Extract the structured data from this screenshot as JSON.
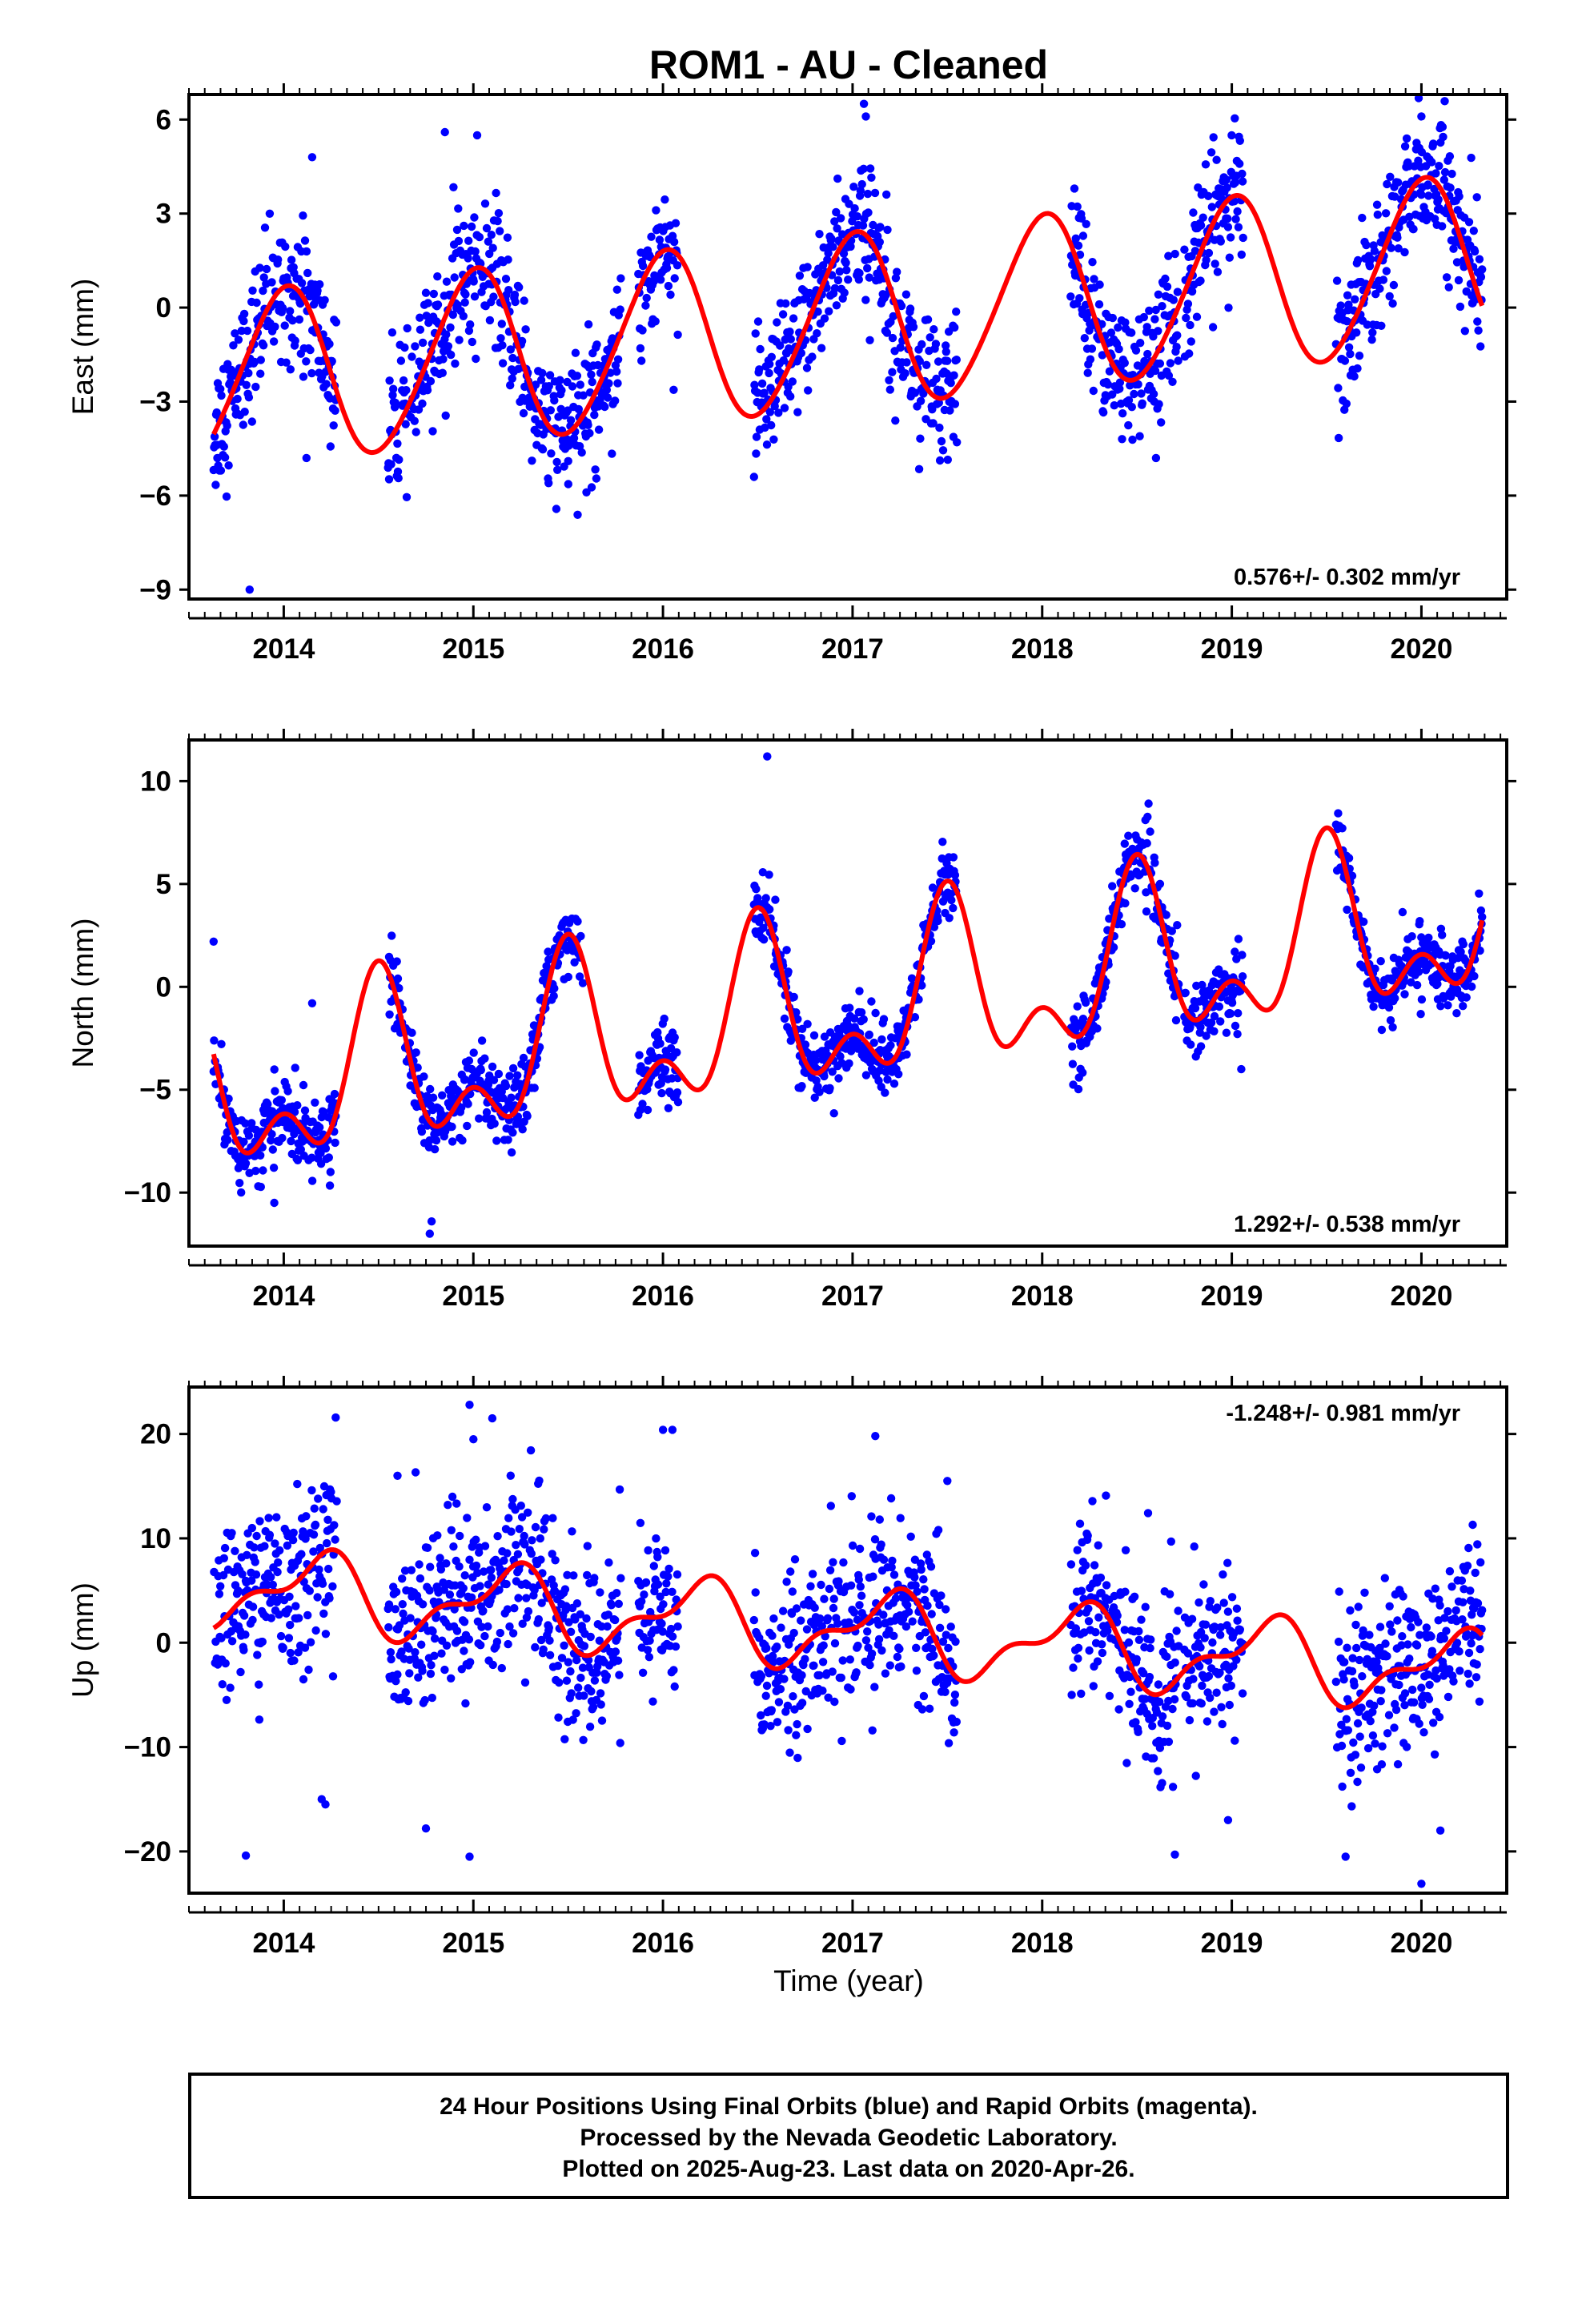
{
  "title": "ROM1  - AU - Cleaned",
  "xlabel": "Time (year)",
  "footer": {
    "line1": "24 Hour Positions Using Final Orbits (blue) and Rapid Orbits (magenta).",
    "line2": "Processed by the Nevada Geodetic Laboratory.",
    "line3": "Plotted on 2025-Aug-23. Last data on 2020-Apr-26."
  },
  "colors": {
    "points": "#0000ff",
    "model": "#ff0000",
    "axes": "#000000"
  },
  "chart_data": [
    {
      "type": "scatter",
      "component": "east",
      "ylabel": "East (mm)",
      "rate_label": "0.576+/- 0.302 mm/yr",
      "rate_position": "bottom-right",
      "xlim": [
        2013.5,
        2020.45
      ],
      "ylim": [
        -9.3,
        6.8
      ],
      "xticks": [
        2014,
        2015,
        2016,
        2017,
        2018,
        2019,
        2020
      ],
      "yticks": [
        -9,
        -6,
        -3,
        0,
        3,
        6
      ],
      "ytick_labels": [
        "−9",
        "−6",
        "−3",
        "0",
        "3",
        "6"
      ],
      "data_segments": [
        [
          2013.63,
          2014.28
        ],
        [
          2014.55,
          2015.78
        ],
        [
          2015.87,
          2016.08
        ],
        [
          2016.48,
          2017.55
        ],
        [
          2018.15,
          2018.72
        ],
        [
          2018.75,
          2019.06
        ],
        [
          2019.55,
          2020.32
        ]
      ],
      "scatter_sigma": 1.1,
      "model": {
        "offset": -0.45,
        "rate": 0.576,
        "ref_year": 2017.0,
        "annual_amp": 2.75,
        "annual_peak": 2017.0,
        "semi_amp": 0.25,
        "semi_peak": 2017.1
      },
      "outliers": [
        [
          2013.82,
          -9.0
        ],
        [
          2014.15,
          4.8
        ],
        [
          2017.06,
          6.5
        ],
        [
          2017.07,
          6.1
        ],
        [
          2014.85,
          5.6
        ],
        [
          2015.02,
          5.5
        ],
        [
          2020.0,
          6.1
        ],
        [
          2018.17,
          3.8
        ],
        [
          2018.6,
          -4.8
        ],
        [
          2015.5,
          -4.9
        ],
        [
          2013.65,
          -4.8
        ],
        [
          2014.12,
          -4.8
        ],
        [
          2017.55,
          -4.3
        ]
      ]
    },
    {
      "type": "scatter",
      "component": "north",
      "ylabel": "North (mm)",
      "rate_label": "1.292+/- 0.538 mm/yr",
      "rate_position": "bottom-right",
      "xlim": [
        2013.5,
        2020.45
      ],
      "ylim": [
        -12.6,
        12.0
      ],
      "xticks": [
        2014,
        2015,
        2016,
        2017,
        2018,
        2019,
        2020
      ],
      "yticks": [
        -10,
        -5,
        0,
        5,
        10
      ],
      "ytick_labels": [
        "−10",
        "−5",
        "0",
        "5",
        "10"
      ],
      "data_segments": [
        [
          2013.63,
          2014.28
        ],
        [
          2014.55,
          2015.58
        ],
        [
          2015.87,
          2016.08
        ],
        [
          2016.48,
          2017.55
        ],
        [
          2018.15,
          2018.72
        ],
        [
          2018.75,
          2019.06
        ],
        [
          2019.55,
          2020.32
        ]
      ],
      "scatter_sigma": 0.85,
      "model": {
        "offset": -1.1,
        "rate": 1.292,
        "ref_year": 2017.0,
        "annual_amp": 3.4,
        "annual_peak": 2017.5,
        "semi_amp": 2.2,
        "semi_peak": 2017.5
      },
      "outliers": [
        [
          2016.55,
          11.2
        ],
        [
          2014.77,
          -12.0
        ],
        [
          2014.78,
          -11.4
        ],
        [
          2013.95,
          -10.5
        ],
        [
          2016.08,
          -5.6
        ],
        [
          2019.05,
          -4.0
        ],
        [
          2013.63,
          2.2
        ],
        [
          2014.15,
          -0.8
        ]
      ]
    },
    {
      "type": "scatter",
      "component": "up",
      "ylabel": "Up (mm)",
      "rate_label": "-1.248+/- 0.981 mm/yr",
      "rate_position": "top-right",
      "xlim": [
        2013.5,
        2020.45
      ],
      "ylim": [
        -24.0,
        24.5
      ],
      "xticks": [
        2014,
        2015,
        2016,
        2017,
        2018,
        2019,
        2020
      ],
      "yticks": [
        -20,
        -10,
        0,
        10,
        20
      ],
      "ytick_labels": [
        "−20",
        "−10",
        "0",
        "10",
        "20"
      ],
      "data_segments": [
        [
          2013.63,
          2014.28
        ],
        [
          2014.55,
          2015.78
        ],
        [
          2015.87,
          2016.08
        ],
        [
          2016.48,
          2017.55
        ],
        [
          2018.15,
          2018.72
        ],
        [
          2018.75,
          2019.06
        ],
        [
          2019.55,
          2020.32
        ]
      ],
      "scatter_sigma": 4.0,
      "model": {
        "offset": 1.2,
        "rate": -1.248,
        "ref_year": 2017.0,
        "annual_amp": 3.3,
        "annual_peak": 2017.18,
        "semi_amp": 1.6,
        "semi_peak": 2017.3
      },
      "outliers": [
        [
          2014.98,
          22.8
        ],
        [
          2015.1,
          21.5
        ],
        [
          2015.0,
          19.5
        ],
        [
          2016.0,
          20.4
        ],
        [
          2016.05,
          20.4
        ],
        [
          2017.12,
          19.8
        ],
        [
          2014.6,
          16.0
        ],
        [
          2017.5,
          15.5
        ],
        [
          2013.8,
          -20.4
        ],
        [
          2014.98,
          -20.5
        ],
        [
          2018.7,
          -20.3
        ],
        [
          2020.0,
          -23.1
        ],
        [
          2019.6,
          -20.5
        ],
        [
          2014.75,
          -17.8
        ],
        [
          2014.2,
          -15.0
        ],
        [
          2014.22,
          -15.5
        ],
        [
          2018.98,
          -17.0
        ],
        [
          2020.1,
          -18.0
        ],
        [
          2018.68,
          9.7
        ]
      ]
    }
  ]
}
